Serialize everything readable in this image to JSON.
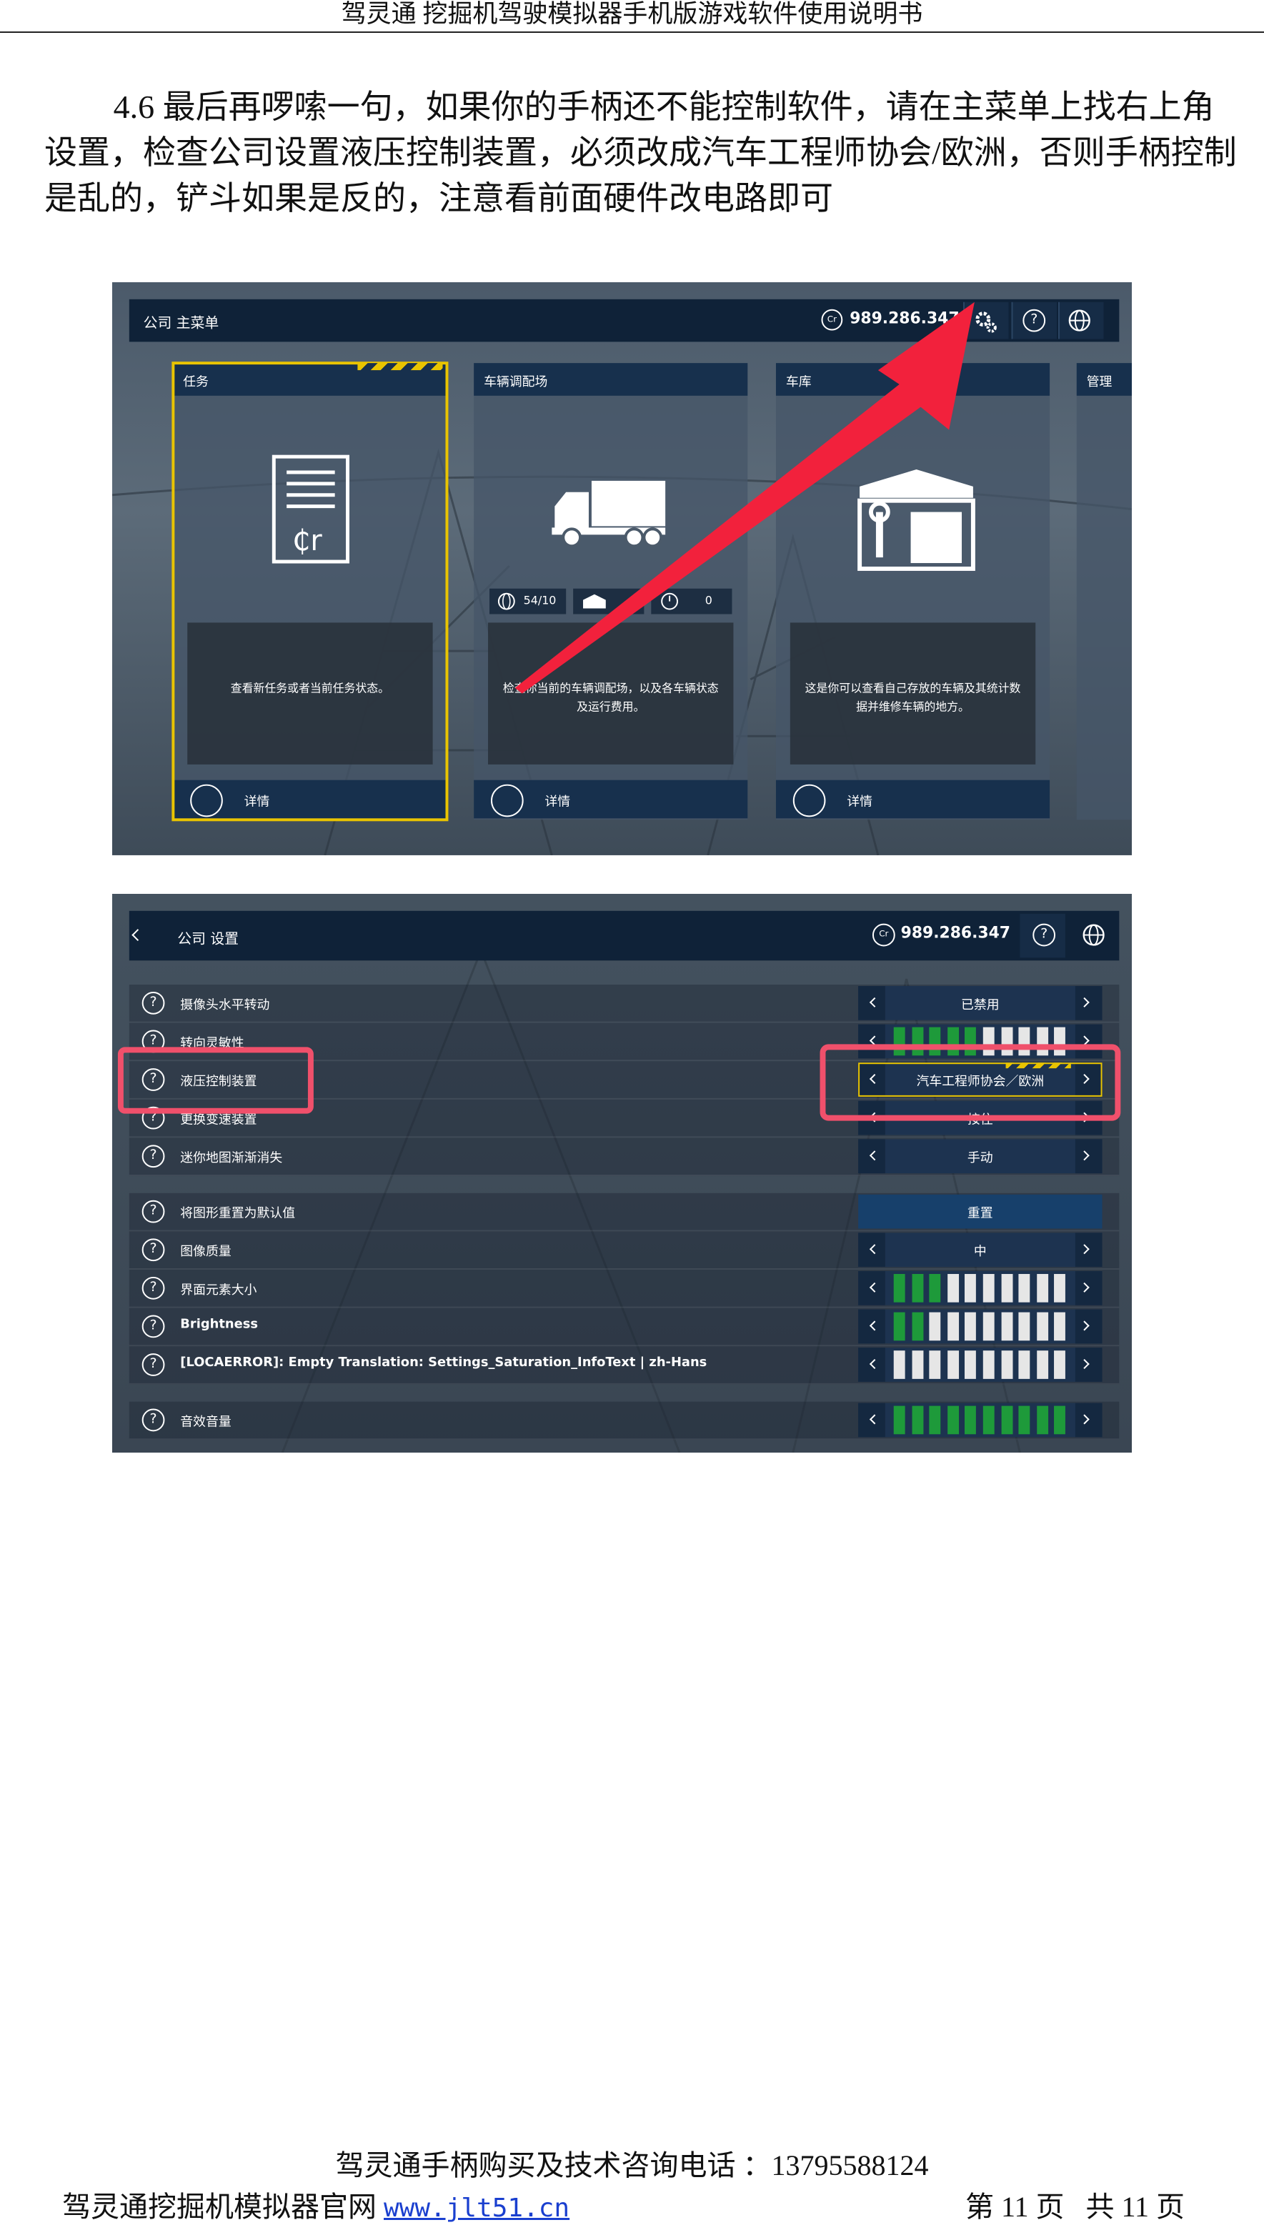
{
  "header": {
    "title": "驾灵通 挖掘机驾驶模拟器手机版游戏软件使用说明书"
  },
  "body": {
    "paragraph": "4.6 最后再啰嗦一句，如果你的手柄还不能控制软件，请在主菜单上找右上角设置，检查公司设置液压控制装置，必须改成汽车工程师协会/欧洲，否则手柄控制是乱的，铲斗如果是反的，注意看前面硬件改电路即可"
  },
  "main_menu": {
    "breadcrumb": "公司 主菜单",
    "currency_icon": "Cr",
    "credits": "989.286.347",
    "help_icon": "?",
    "doc_icon_text": "₵r",
    "panels": [
      {
        "title": "任务",
        "description": "查看新任务或者当前任务状态。",
        "button": "详情"
      },
      {
        "title": "车辆调配场",
        "description": "检查你当前的车辆调配场，以及各车辆状态及运行费用。",
        "button": "详情",
        "stats": [
          "54/10",
          "0"
        ]
      },
      {
        "title": "车库",
        "description": "这是你可以查看自己存放的车辆及其统计数据并维修车辆的地方。",
        "button": "详情"
      },
      {
        "title": "管理"
      }
    ]
  },
  "settings": {
    "breadcrumb": "公司 设置",
    "currency_icon": "Cr",
    "credits": "989.286.347",
    "help_icon": "?",
    "segments": 10,
    "groups": [
      [
        {
          "label": "摄像头水平转动",
          "value": "已禁用"
        },
        {
          "label": "转向灵敏性",
          "level": 5
        },
        {
          "label": "液压控制装置",
          "value": "汽车工程师协会／欧洲"
        },
        {
          "label": "更换变速装置",
          "value": "按住"
        },
        {
          "label": "迷你地图渐渐消失",
          "value": "手动"
        }
      ],
      [
        {
          "label": "将图形重置为默认值",
          "button": "重置"
        },
        {
          "label": "图像质量",
          "value": "中"
        },
        {
          "label": "界面元素大小",
          "level": 3
        },
        {
          "label": "Brightness",
          "level": 2
        },
        {
          "label": "[LOCAERROR]: Empty Translation: Settings_Saturation_InfoText | zh-Hans",
          "level": 0
        }
      ],
      [
        {
          "label": "音效音量",
          "level": 10
        }
      ]
    ]
  },
  "footer": {
    "contact": "驾灵通手柄购买及技术咨询电话 ：13795588124",
    "website_label": "驾灵通挖掘机模拟器官网",
    "website_url": "www.jlt51.cn",
    "page": "第 11 页",
    "total": "共 11 页"
  }
}
